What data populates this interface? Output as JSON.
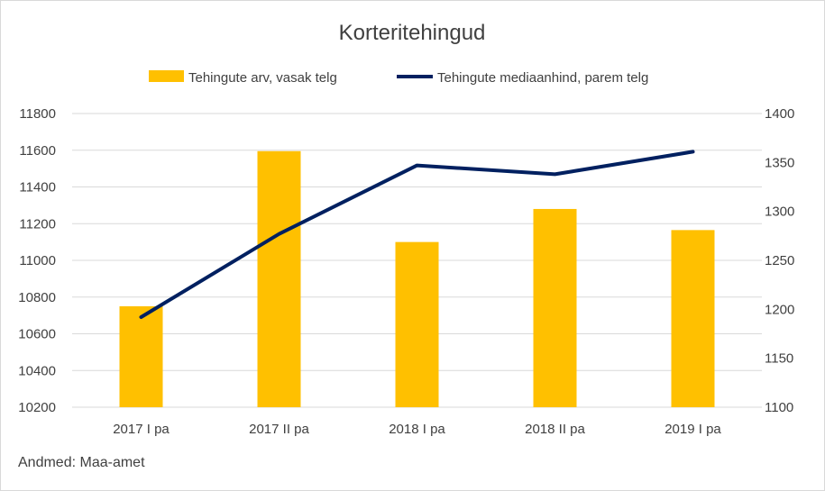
{
  "chart_data": {
    "type": "bar",
    "title": "Korteritehingud",
    "source": "Andmed: Maa-amet",
    "categories": [
      "2017 I pa",
      "2017 II pa",
      "2018 I pa",
      "2018 II pa",
      "2019 I pa"
    ],
    "series": [
      {
        "name": "Tehingute arv, vasak telg",
        "type": "bar",
        "axis": "left",
        "color": "#FFC000",
        "values": [
          10750,
          11595,
          11100,
          11280,
          11165
        ]
      },
      {
        "name": "Tehingute mediaanhind, parem telg",
        "type": "line",
        "axis": "right",
        "color": "#002060",
        "values": [
          1192,
          1277,
          1347,
          1338,
          1361
        ]
      }
    ],
    "y_left": {
      "min": 10200,
      "max": 11800,
      "step": 200,
      "ticks": [
        "10200",
        "10400",
        "10600",
        "10800",
        "11000",
        "11200",
        "11400",
        "11600",
        "11800"
      ]
    },
    "y_right": {
      "min": 1100,
      "max": 1400,
      "step": 50,
      "ticks": [
        "1100",
        "1150",
        "1200",
        "1250",
        "1300",
        "1350",
        "1400"
      ]
    },
    "grid": true,
    "legend_position": "top"
  }
}
